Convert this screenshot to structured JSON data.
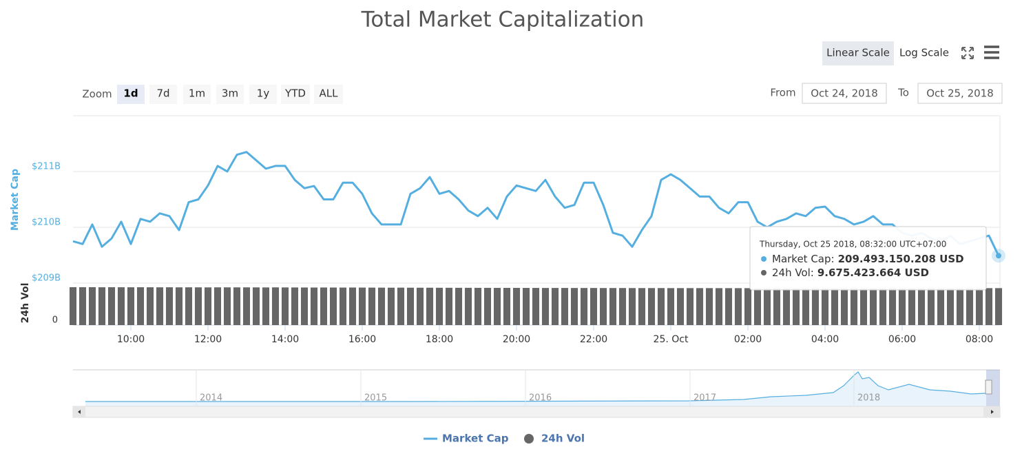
{
  "toolbar": {
    "scale_buttons": [
      "Linear Scale",
      "Log Scale"
    ],
    "zoom_label": "Zoom",
    "zoom_buttons": [
      "1d",
      "7d",
      "1m",
      "3m",
      "1y",
      "YTD",
      "ALL"
    ],
    "from_label": "From",
    "from": "Oct 24, 2018",
    "to_label": "To",
    "to": "Oct 25, 2018"
  },
  "chart_data": {
    "type": "line",
    "title": "Total Market Capitalization",
    "ylabel": "Market Cap",
    "y2label": "24h Vol",
    "categories": [
      null,
      null,
      null,
      null,
      null,
      null,
      "10:00",
      null,
      null,
      null,
      null,
      null,
      null,
      null,
      "12:00",
      null,
      null,
      null,
      null,
      null,
      null,
      null,
      "14:00",
      null,
      null,
      null,
      null,
      null,
      null,
      null,
      "16:00",
      null,
      null,
      null,
      null,
      null,
      null,
      null,
      "18:00",
      null,
      null,
      null,
      null,
      null,
      null,
      null,
      "20:00",
      null,
      null,
      null,
      null,
      null,
      null,
      null,
      "22:00",
      null,
      null,
      null,
      null,
      null,
      null,
      null,
      "25. Oct",
      null,
      null,
      null,
      null,
      null,
      null,
      null,
      "02:00",
      null,
      null,
      null,
      null,
      null,
      null,
      null,
      "04:00",
      null,
      null,
      null,
      null,
      null,
      null,
      null,
      "06:00",
      null,
      null,
      null,
      null,
      null,
      null,
      null,
      "08:00",
      null,
      null
    ],
    "series": [
      {
        "name": "Market Cap",
        "color": "#55aee0",
        "values": [
          209.75,
          209.7,
          210.05,
          209.65,
          209.8,
          210.1,
          209.7,
          210.15,
          210.1,
          210.25,
          210.2,
          209.95,
          210.45,
          210.5,
          210.75,
          211.1,
          211.0,
          211.3,
          211.35,
          211.2,
          211.05,
          211.1,
          211.1,
          210.85,
          210.7,
          210.74,
          210.5,
          210.5,
          210.8,
          210.8,
          210.6,
          210.25,
          210.05,
          210.05,
          210.05,
          210.6,
          210.7,
          210.9,
          210.6,
          210.65,
          210.5,
          210.3,
          210.2,
          210.35,
          210.15,
          210.55,
          210.75,
          210.7,
          210.65,
          210.85,
          210.55,
          210.35,
          210.4,
          210.8,
          210.8,
          210.4,
          209.9,
          209.85,
          209.65,
          209.95,
          210.2,
          210.85,
          210.95,
          210.85,
          210.7,
          210.55,
          210.55,
          210.35,
          210.25,
          210.45,
          210.45,
          210.1,
          210.0,
          210.1,
          210.15,
          210.25,
          210.2,
          210.35,
          210.37,
          210.2,
          210.15,
          210.05,
          210.1,
          210.2,
          210.05,
          210.05,
          209.9,
          209.85,
          209.9,
          209.8,
          209.75,
          209.85,
          209.7,
          209.75,
          209.8,
          209.85,
          209.49
        ]
      },
      {
        "name": "24h Vol",
        "color": "#666666",
        "axis": "y2",
        "values": [
          9.92,
          9.91,
          9.92,
          9.9,
          9.91,
          9.9,
          9.9,
          9.91,
          9.9,
          9.89,
          9.9,
          9.88,
          9.89,
          9.88,
          9.87,
          9.88,
          9.88,
          9.87,
          9.88,
          9.87,
          9.86,
          9.87,
          9.86,
          9.85,
          9.84,
          9.83,
          9.84,
          9.83,
          9.82,
          9.83,
          9.82,
          9.81,
          9.8,
          9.79,
          9.8,
          9.79,
          9.78,
          9.78,
          9.77,
          9.77,
          9.76,
          9.76,
          9.75,
          9.75,
          9.74,
          9.74,
          9.74,
          9.73,
          9.73,
          9.72,
          9.72,
          9.72,
          9.71,
          9.71,
          9.71,
          9.7,
          9.7,
          9.7,
          9.69,
          9.69,
          9.69,
          9.69,
          9.68,
          9.68,
          9.68,
          9.68,
          9.68,
          9.67,
          9.67,
          9.67,
          9.67,
          9.67,
          9.67,
          9.67,
          9.67,
          9.67,
          9.67,
          9.67,
          9.67,
          9.67,
          9.67,
          9.67,
          9.67,
          9.67,
          9.67,
          9.67,
          9.67,
          9.67,
          9.67,
          9.67,
          9.67,
          9.67,
          9.67,
          9.67,
          9.67,
          9.67,
          9.675
        ]
      }
    ],
    "ylim": [
      209,
      212
    ],
    "yticks": [
      {
        "value": 209,
        "label": "$209B"
      },
      {
        "value": 210,
        "label": "$210B"
      },
      {
        "value": 211,
        "label": "$211B"
      }
    ],
    "y2lim": [
      0,
      11
    ],
    "y2ticks": [
      0
    ],
    "grid": true,
    "tooltip": {
      "date": "Thursday, Oct 25 2018, 08:32:00 UTC+07:00",
      "items": [
        {
          "label": "Market Cap:",
          "value": "209.493.150.208 USD"
        },
        {
          "label": "24h Vol:",
          "value": "9.675.423.664 USD"
        }
      ]
    },
    "navigator": {
      "labels": [
        "2014",
        "2015",
        "2016",
        "2017",
        "2018"
      ]
    }
  }
}
